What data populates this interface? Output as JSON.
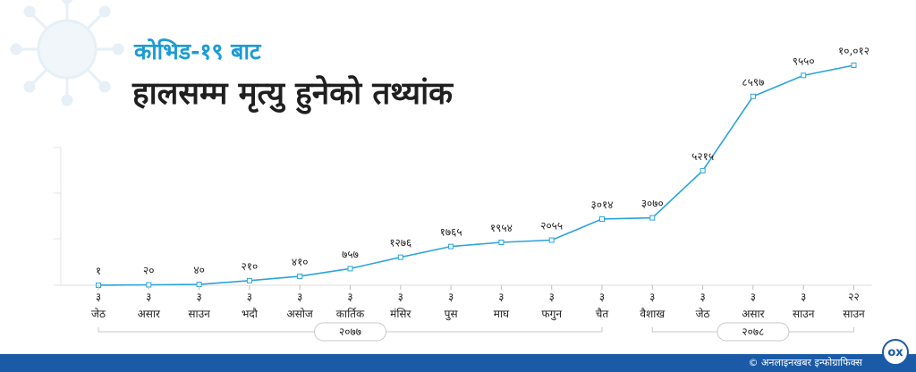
{
  "header": {
    "title_line1": "कोभिड-१९ बाट",
    "title_line2": "हालसम्म मृत्यु हुनेको तथ्यांक"
  },
  "footer": {
    "credit": "© अनलाइनखबर इन्फोग्राफिक्स",
    "logo_text": "ox"
  },
  "colors": {
    "accent": "#1c9bd6",
    "line": "#2aa3dc",
    "footer": "#1b5aa6"
  },
  "chart_data": {
    "type": "line",
    "title": "कोभिड-१९ बाट हालसम्म मृत्यु हुनेको तथ्यांक",
    "x_days": [
      "३",
      "३",
      "३",
      "३",
      "३",
      "३",
      "३",
      "३",
      "३",
      "३",
      "३",
      "३",
      "३",
      "३",
      "३",
      "२२"
    ],
    "x_months": [
      "जेठ",
      "असार",
      "साउन",
      "भदौ",
      "असोज",
      "कार्तिक",
      "मंसिर",
      "पुस",
      "माघ",
      "फगुन",
      "चैत",
      "वैशाख",
      "जेठ",
      "असार",
      "साउन",
      "साउन"
    ],
    "values": [
      1,
      20,
      40,
      210,
      410,
      757,
      1276,
      1765,
      1954,
      2055,
      3014,
      3070,
      5215,
      8597,
      9550,
      10012
    ],
    "value_labels": [
      "१",
      "२०",
      "४०",
      "२१०",
      "४१०",
      "७५७",
      "१२७६",
      "१७६५",
      "१९५४",
      "२०५५",
      "३०१४",
      "३०७०",
      "५२१५",
      "८५९७",
      "९५५०",
      "१०,०१२"
    ],
    "year_groups": [
      {
        "label": "२०७७",
        "start": 0,
        "end": 10
      },
      {
        "label": "२०७८",
        "start": 11,
        "end": 15
      }
    ],
    "ylim": [
      0,
      10500
    ],
    "grid": false
  }
}
